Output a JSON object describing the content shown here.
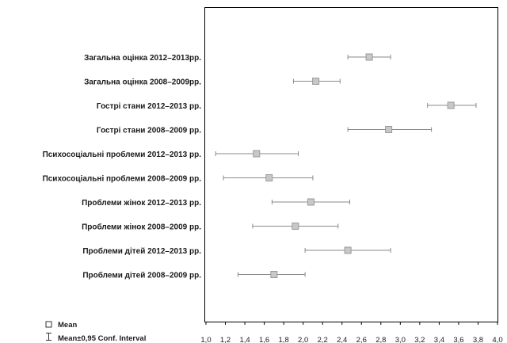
{
  "chart_data": {
    "type": "scatter",
    "categories": [
      "Загальна оцінка 2012–2013рр.",
      "Загальна оцінка 2008–2009рр.",
      "Гострі стани 2012–2013 рр.",
      "Гострі стани 2008–2009 рр.",
      "Психосоціальні проблеми 2012–2013 рр.",
      "Психосоціальні проблеми 2008–2009 рр.",
      "Проблеми жінок 2012–2013 рр.",
      "Проблеми жінок 2008–2009 рр.",
      "Проблеми дітей 2012–2013 рр.",
      "Проблеми дітей 2008–2009  рр."
    ],
    "mean": [
      2.68,
      2.13,
      3.52,
      2.88,
      1.52,
      1.65,
      2.08,
      1.92,
      2.46,
      1.7
    ],
    "ci_low": [
      2.46,
      1.9,
      3.28,
      2.46,
      1.1,
      1.18,
      1.68,
      1.48,
      2.02,
      1.33
    ],
    "ci_high": [
      2.9,
      2.38,
      3.78,
      3.32,
      1.95,
      2.1,
      2.48,
      2.36,
      2.9,
      2.02
    ],
    "xlim": [
      1.0,
      4.0
    ],
    "xticks": [
      "1,0",
      "1,2",
      "1,4",
      "1,6",
      "1,8",
      "2,0",
      "2,2",
      "2,4",
      "2,6",
      "2,8",
      "3,0",
      "3,2",
      "3,4",
      "3,6",
      "3,8",
      "4,0"
    ],
    "xtick_values": [
      1.0,
      1.2,
      1.4,
      1.6,
      1.8,
      2.0,
      2.2,
      2.4,
      2.6,
      2.8,
      3.0,
      3.2,
      3.4,
      3.6,
      3.8,
      4.0
    ],
    "grid": false,
    "legend_position": "bottom-left",
    "legend": {
      "mean_label": "Mean",
      "ci_label": "Mean±0,95 Conf. Interval"
    },
    "colors": {
      "marker": "#c8c8c8",
      "marker_edge": "#9a9a9a",
      "whisker": "#8a8a8a",
      "axis": "#000000"
    }
  }
}
